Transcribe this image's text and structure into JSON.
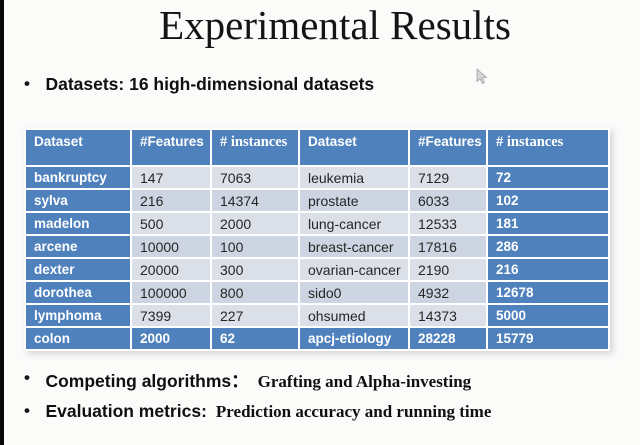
{
  "slide": {
    "title": "Experimental Results"
  },
  "bullets": {
    "datasets": {
      "label": "Datasets: 16 high-dimensional datasets"
    },
    "competing": {
      "label": "Competing algorithms：",
      "value": "Grafting and Alpha-investing"
    },
    "evaluation": {
      "label": "Evaluation metrics:",
      "value": "Prediction accuracy and  running time"
    }
  },
  "table": {
    "headers": [
      "Dataset",
      "#Features",
      "# instances",
      "Dataset",
      "#Features",
      "# instances"
    ],
    "rows": [
      [
        "bankruptcy",
        "147",
        "7063",
        "leukemia",
        "7129",
        "72"
      ],
      [
        "sylva",
        "216",
        "14374",
        "prostate",
        "6033",
        "102"
      ],
      [
        "madelon",
        "500",
        "2000",
        "lung-cancer",
        "12533",
        "181"
      ],
      [
        "arcene",
        "10000",
        "100",
        "breast-cancer",
        "17816",
        "286"
      ],
      [
        "dexter",
        "20000",
        "300",
        "ovarian-cancer",
        "2190",
        "216"
      ],
      [
        "dorothea",
        "100000",
        "800",
        "sido0",
        "4932",
        "12678"
      ],
      [
        "lymphoma",
        "7399",
        "227",
        "ohsumed",
        "14373",
        "5000"
      ],
      [
        "colon",
        "2000",
        "62",
        "apcj-etiology",
        "28228",
        "15779"
      ]
    ]
  },
  "colors": {
    "table_accent": "#4F81BD",
    "band_light": "#DBDFE8",
    "band_dark": "#CDD5E3"
  },
  "icons": {
    "cursor": "arrow-pointer-icon"
  }
}
